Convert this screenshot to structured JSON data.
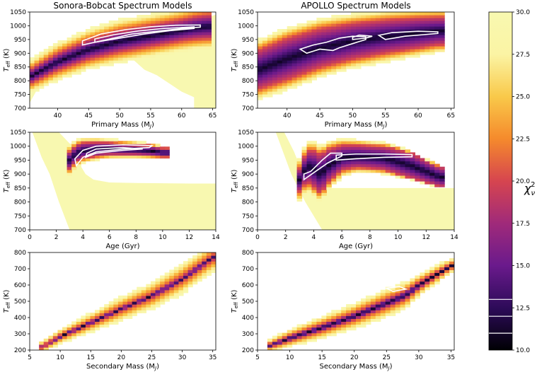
{
  "figure": {
    "colorscale": [
      "#000004",
      "#2d0b59",
      "#6a1a8c",
      "#a02a7a",
      "#d6454f",
      "#f58a2c",
      "#f9c94a",
      "#fbf4a4",
      "#f8f8b0"
    ]
  },
  "chart_data": [
    {
      "type": "heatmap",
      "title": "Sonora-Bobcat Spectrum Models",
      "xlabel": "Primary Mass (M",
      "xlabel_sub": "J",
      "xlabel_end": ")",
      "ylabel": "T",
      "ylabel_sub": "eff",
      "ylabel_end": " (K)",
      "xlim": [
        35.5,
        65.5
      ],
      "ylim": [
        700,
        1050
      ],
      "xticks": [
        40,
        45,
        50,
        55,
        60,
        65
      ],
      "yticks": [
        700,
        750,
        800,
        850,
        900,
        950,
        1000,
        1050
      ],
      "band": {
        "x": [
          35.5,
          40,
          45,
          50,
          55,
          60,
          62,
          64
        ],
        "center": [
          815,
          870,
          915,
          945,
          965,
          985,
          993,
          998
        ],
        "half": [
          25,
          30,
          35,
          38,
          38,
          38,
          40,
          42
        ],
        "env": [
          60,
          70,
          75,
          80,
          80,
          80,
          82,
          82
        ]
      },
      "fill": [
        [
          35.5,
          700
        ],
        [
          35.5,
          870
        ],
        [
          40,
          900
        ],
        [
          45,
          945
        ],
        [
          50,
          975
        ],
        [
          55,
          995
        ],
        [
          60,
          1015
        ],
        [
          64,
          1030
        ],
        [
          65.5,
          1040
        ],
        [
          65.5,
          1050
        ],
        [
          65.5,
          700
        ],
        [
          62,
          700
        ],
        [
          62,
          740
        ],
        [
          60,
          760
        ],
        [
          58,
          790
        ],
        [
          56,
          820
        ],
        [
          54,
          840
        ],
        [
          52,
          880
        ],
        [
          50,
          900
        ],
        [
          48,
          905
        ],
        [
          46,
          902
        ],
        [
          44,
          890
        ],
        [
          42,
          878
        ],
        [
          40,
          860
        ],
        [
          38,
          820
        ],
        [
          37,
          780
        ],
        [
          36,
          740
        ],
        [
          35.5,
          720
        ]
      ],
      "contours": [
        [
          [
            44,
            930
          ],
          [
            48,
            950
          ],
          [
            52,
            970
          ],
          [
            56,
            980
          ],
          [
            60,
            990
          ],
          [
            63,
            995
          ],
          [
            63,
            1003
          ],
          [
            59,
            1002
          ],
          [
            55,
            996
          ],
          [
            51,
            986
          ],
          [
            47,
            970
          ],
          [
            44,
            945
          ]
        ],
        [
          [
            46,
            940
          ],
          [
            50,
            955
          ],
          [
            54,
            970
          ],
          [
            58,
            982
          ],
          [
            62,
            990
          ],
          [
            62,
            996
          ],
          [
            57,
            990
          ],
          [
            53,
            981
          ],
          [
            49,
            967
          ],
          [
            46,
            952
          ]
        ]
      ]
    },
    {
      "type": "heatmap",
      "title": "APOLLO Spectrum Models",
      "xlabel": "Primary Mass (M",
      "xlabel_sub": "J",
      "xlabel_end": ")",
      "ylabel": "T",
      "ylabel_sub": "eff",
      "ylabel_end": " (K)",
      "xlim": [
        35.5,
        65.5
      ],
      "ylim": [
        700,
        1050
      ],
      "xticks": [
        40,
        45,
        50,
        55,
        60,
        65
      ],
      "yticks": [
        700,
        750,
        800,
        850,
        900,
        950,
        1000,
        1050
      ],
      "band": {
        "x": [
          35.5,
          40,
          45,
          50,
          55,
          60,
          63
        ],
        "center": [
          840,
          880,
          920,
          945,
          962,
          975,
          982
        ],
        "half": [
          70,
          75,
          70,
          65,
          60,
          55,
          50
        ],
        "env": [
          110,
          115,
          110,
          100,
          95,
          85,
          80
        ]
      },
      "fill": [],
      "contours": [
        [
          [
            43,
            900
          ],
          [
            45,
            915
          ],
          [
            47,
            910
          ],
          [
            48,
            920
          ],
          [
            50,
            935
          ],
          [
            52,
            950
          ],
          [
            52,
            960
          ],
          [
            50,
            962
          ],
          [
            48,
            955
          ],
          [
            46,
            940
          ],
          [
            44,
            930
          ],
          [
            42,
            915
          ]
        ],
        [
          [
            50,
            950
          ],
          [
            52,
            955
          ],
          [
            53,
            962
          ],
          [
            51,
            966
          ],
          [
            50,
            958
          ]
        ],
        [
          [
            55,
            950
          ],
          [
            58,
            962
          ],
          [
            61,
            968
          ],
          [
            63,
            972
          ],
          [
            63,
            978
          ],
          [
            60,
            980
          ],
          [
            56,
            975
          ],
          [
            54,
            965
          ]
        ]
      ]
    },
    {
      "type": "heatmap",
      "title": "",
      "xlabel": "Age (Gyr)",
      "xlabel_sub": "",
      "xlabel_end": "",
      "ylabel": "T",
      "ylabel_sub": "eff",
      "ylabel_end": " (K)",
      "xlim": [
        0,
        14
      ],
      "ylim": [
        700,
        1050
      ],
      "xticks": [
        0,
        2,
        4,
        6,
        8,
        10,
        12,
        14
      ],
      "yticks": [
        700,
        750,
        800,
        850,
        900,
        950,
        1000,
        1050
      ],
      "band": {
        "x": [
          3.0,
          3.5,
          4,
          5,
          6,
          7,
          8,
          9,
          10
        ],
        "center": [
          950,
          975,
          985,
          990,
          992,
          990,
          988,
          985,
          978
        ],
        "half": [
          30,
          30,
          28,
          25,
          22,
          20,
          18,
          18,
          15
        ],
        "env": [
          55,
          50,
          45,
          40,
          35,
          32,
          30,
          28,
          25
        ]
      },
      "fill": [
        [
          2.2,
          1050
        ],
        [
          3.2,
          1000
        ],
        [
          3.7,
          940
        ],
        [
          4.2,
          900
        ],
        [
          4.8,
          880
        ],
        [
          6,
          870
        ],
        [
          8,
          868
        ],
        [
          12,
          866
        ],
        [
          14,
          866
        ],
        [
          14,
          700
        ],
        [
          3.0,
          700
        ],
        [
          2.2,
          800
        ],
        [
          1.5,
          900
        ],
        [
          0.9,
          960
        ],
        [
          0.2,
          1050
        ]
      ],
      "contours": [
        [
          [
            3.5,
            930
          ],
          [
            4,
            960
          ],
          [
            5,
            980
          ],
          [
            7,
            990
          ],
          [
            9,
            995
          ],
          [
            9.2,
            1002
          ],
          [
            7,
            1005
          ],
          [
            5,
            1000
          ],
          [
            4,
            985
          ],
          [
            3.4,
            955
          ]
        ],
        [
          [
            4.2,
            960
          ],
          [
            5,
            975
          ],
          [
            7,
            985
          ],
          [
            8.5,
            990
          ],
          [
            7,
            995
          ],
          [
            5,
            990
          ],
          [
            4.3,
            975
          ]
        ]
      ]
    },
    {
      "type": "heatmap",
      "title": "",
      "xlabel": "Age (Gyr)",
      "xlabel_sub": "",
      "xlabel_end": "",
      "ylabel": "T",
      "ylabel_sub": "eff",
      "ylabel_end": " (K)",
      "xlim": [
        0,
        14
      ],
      "ylim": [
        700,
        1050
      ],
      "xticks": [
        0,
        2,
        4,
        6,
        8,
        10,
        12,
        14
      ],
      "yticks": [
        700,
        750,
        800,
        850,
        900,
        950,
        1000,
        1050
      ],
      "band": {
        "x": [
          3.0,
          3.5,
          4,
          4.5,
          5,
          6,
          7,
          8,
          9,
          10,
          11,
          12,
          13
        ],
        "center": [
          880,
          930,
          920,
          900,
          930,
          960,
          965,
          962,
          958,
          945,
          930,
          910,
          890
        ],
        "half": [
          40,
          55,
          65,
          70,
          60,
          45,
          40,
          40,
          42,
          45,
          45,
          40,
          35
        ],
        "env": [
          80,
          90,
          100,
          100,
          90,
          70,
          60,
          58,
          58,
          55,
          50,
          45,
          40
        ]
      },
      "fill": [
        [
          1.9,
          1050
        ],
        [
          2.6,
          980
        ],
        [
          3.0,
          930
        ],
        [
          3.5,
          880
        ],
        [
          4.2,
          860
        ],
        [
          5,
          850
        ],
        [
          7,
          850
        ],
        [
          12,
          850
        ],
        [
          14,
          850
        ],
        [
          14,
          700
        ],
        [
          4.6,
          700
        ],
        [
          3.4,
          800
        ],
        [
          2.4,
          900
        ],
        [
          1.3,
          1050
        ]
      ],
      "contours": [
        [
          [
            3.3,
            880
          ],
          [
            4,
            905
          ],
          [
            5,
            940
          ],
          [
            6,
            965
          ],
          [
            6,
            975
          ],
          [
            5.2,
            975
          ],
          [
            4.6,
            950
          ],
          [
            4.2,
            930
          ],
          [
            3.8,
            910
          ],
          [
            3.3,
            900
          ]
        ],
        [
          [
            5.6,
            950
          ],
          [
            7,
            955
          ],
          [
            9,
            960
          ],
          [
            11,
            962
          ],
          [
            11,
            970
          ],
          [
            9,
            972
          ],
          [
            7,
            972
          ],
          [
            5.6,
            968
          ]
        ]
      ]
    },
    {
      "type": "heatmap",
      "title": "",
      "xlabel": "Secondary Mass (M",
      "xlabel_sub": "J",
      "xlabel_end": ")",
      "ylabel": "T",
      "ylabel_sub": "eff",
      "ylabel_end": " (K)",
      "xlim": [
        5,
        35.5
      ],
      "ylim": [
        200,
        800
      ],
      "xticks": [
        5,
        10,
        15,
        20,
        25,
        30,
        35
      ],
      "yticks": [
        200,
        300,
        400,
        500,
        600,
        700,
        800
      ],
      "band": {
        "x": [
          7,
          10,
          15,
          20,
          25,
          30,
          35
        ],
        "center": [
          220,
          285,
          370,
          455,
          535,
          640,
          770
        ],
        "half": [
          8,
          10,
          12,
          12,
          14,
          15,
          15
        ],
        "env": [
          35,
          45,
          60,
          75,
          85,
          95,
          90
        ]
      },
      "fill": [],
      "contours": []
    },
    {
      "type": "heatmap",
      "title": "",
      "xlabel": "Secondary Mass (M",
      "xlabel_sub": "J",
      "xlabel_end": ")",
      "ylabel": "T",
      "ylabel_sub": "eff",
      "ylabel_end": " (K)",
      "xlim": [
        5,
        35.5
      ],
      "ylim": [
        200,
        800
      ],
      "xticks": [
        5,
        10,
        15,
        20,
        25,
        30,
        35
      ],
      "yticks": [
        200,
        300,
        400,
        500,
        600,
        700,
        800
      ],
      "band": {
        "x": [
          7,
          10,
          15,
          20,
          25,
          28,
          30,
          35
        ],
        "center": [
          230,
          275,
          340,
          410,
          490,
          540,
          600,
          720
        ],
        "half": [
          10,
          16,
          20,
          22,
          25,
          25,
          20,
          12
        ],
        "env": [
          40,
          55,
          70,
          80,
          90,
          85,
          70,
          45
        ]
      },
      "fill": [],
      "contours": [
        [
          [
            26,
            560
          ],
          [
            28,
            575
          ],
          [
            27,
            590
          ],
          [
            25,
            580
          ]
        ]
      ]
    }
  ],
  "colorbar": {
    "label": "χ",
    "label_sub": "ν",
    "label_sup": "2",
    "range": [
      10.0,
      30.0
    ],
    "ticks": [
      "10.0",
      "12.5",
      "15.0",
      "17.5",
      "20.0",
      "22.5",
      "25.0",
      "27.5",
      "30.0"
    ],
    "lines": [
      11.0,
      12.0,
      13.0
    ]
  }
}
